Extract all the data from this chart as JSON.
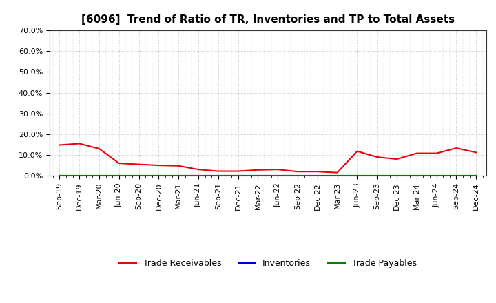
{
  "title": "[6096]  Trend of Ratio of TR, Inventories and TP to Total Assets",
  "x_labels": [
    "Sep-19",
    "Dec-19",
    "Mar-20",
    "Jun-20",
    "Sep-20",
    "Dec-20",
    "Mar-21",
    "Jun-21",
    "Sep-21",
    "Dec-21",
    "Mar-22",
    "Jun-22",
    "Sep-22",
    "Dec-22",
    "Mar-23",
    "Jun-23",
    "Sep-23",
    "Dec-23",
    "Mar-24",
    "Jun-24",
    "Sep-24",
    "Dec-24"
  ],
  "trade_receivables": [
    0.148,
    0.155,
    0.13,
    0.06,
    0.055,
    0.05,
    0.048,
    0.03,
    0.022,
    0.022,
    0.028,
    0.03,
    0.02,
    0.02,
    0.015,
    0.118,
    0.09,
    0.08,
    0.108,
    0.108,
    0.133,
    0.112
  ],
  "inventories": [
    0.0,
    0.0,
    0.0,
    0.0,
    0.0,
    0.0,
    0.0,
    0.0,
    0.0,
    0.0,
    0.0,
    0.0,
    0.0,
    0.0,
    0.0,
    0.0,
    0.0,
    0.0,
    0.0,
    0.0,
    0.0,
    0.0
  ],
  "trade_payables": [
    0.0,
    0.0,
    0.0,
    0.0,
    0.0,
    0.0,
    0.0,
    0.0,
    0.0,
    0.0,
    0.0,
    0.0,
    0.0,
    0.0,
    0.0,
    0.0,
    0.0,
    0.0,
    0.0,
    0.0,
    0.0,
    0.0
  ],
  "tr_color": "#e8000d",
  "inv_color": "#0000cd",
  "tp_color": "#008000",
  "ylim": [
    0.0,
    0.7
  ],
  "yticks": [
    0.0,
    0.1,
    0.2,
    0.3,
    0.4,
    0.5,
    0.6,
    0.7
  ],
  "ytick_labels": [
    "0.0%",
    "10.0%",
    "20.0%",
    "30.0%",
    "40.0%",
    "50.0%",
    "60.0%",
    "70.0%"
  ],
  "bg_color": "#ffffff",
  "plot_bg_color": "#ffffff",
  "legend_labels": [
    "Trade Receivables",
    "Inventories",
    "Trade Payables"
  ],
  "title_fontsize": 11,
  "tick_fontsize": 8,
  "legend_fontsize": 9,
  "grid_color": "#aaaaaa",
  "spine_color": "#333333"
}
